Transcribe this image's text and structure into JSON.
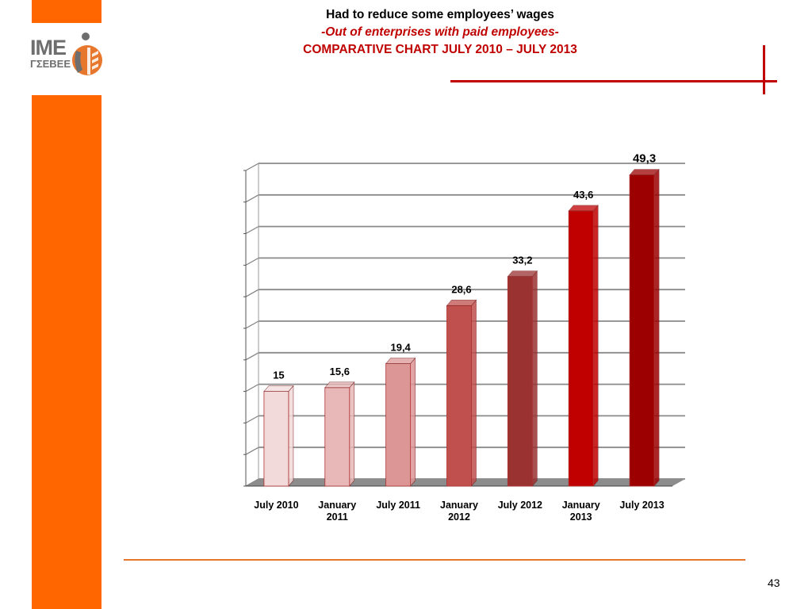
{
  "header": {
    "title_line1": "Had to reduce some employees’ wages",
    "title_line2": "-Out of enterprises with paid employees-",
    "title_line3": "COMPARATIVE CHART JULY 2010 – JULY 2013"
  },
  "logo": {
    "main": "IME",
    "sub": "ΓΣΕΒΕΕ"
  },
  "page_number": "43",
  "colors": {
    "accent_orange": "#ff6600",
    "brand_red": "#c00000"
  },
  "chart_data": {
    "type": "bar",
    "categories": [
      [
        "July 2010"
      ],
      [
        "January",
        "2011"
      ],
      [
        "July 2011"
      ],
      [
        "January",
        "2012"
      ],
      [
        "July 2012"
      ],
      [
        "January",
        "2013"
      ],
      [
        "July 2013"
      ]
    ],
    "values": [
      15,
      15.6,
      19.4,
      28.6,
      33.2,
      43.6,
      49.3
    ],
    "value_labels": [
      "15",
      "15,6",
      "19,4",
      "28,6",
      "33,2",
      "43,6",
      "49,3"
    ],
    "bar_colors": [
      "#f3dada",
      "#e8b8b8",
      "#dc9696",
      "#c0504d",
      "#9a3232",
      "#c00000",
      "#9c0000"
    ],
    "ylim": [
      0,
      50
    ],
    "grid": true,
    "legend": "none",
    "title": "",
    "xlabel": "",
    "ylabel": ""
  }
}
